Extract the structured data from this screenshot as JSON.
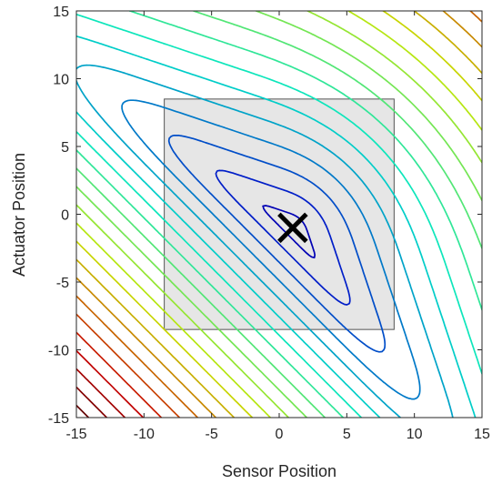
{
  "chart_data": {
    "type": "contour",
    "title": "",
    "xlabel": "Sensor Position",
    "ylabel": "Actuator Position",
    "xlim": [
      -15,
      15
    ],
    "ylim": [
      -15,
      15
    ],
    "xticks": [
      "-15",
      "-10",
      "-5",
      "0",
      "5",
      "10",
      "15"
    ],
    "yticks": [
      "-15",
      "-10",
      "-5",
      "0",
      "5",
      "10",
      "15"
    ],
    "xtick_values": [
      -15,
      -10,
      -5,
      0,
      5,
      10,
      15
    ],
    "ytick_values": [
      -15,
      -10,
      -5,
      0,
      5,
      10,
      15
    ],
    "grid": false,
    "colormap": "jet",
    "colors": {
      "low": "#0000aa",
      "mid": "#00ffcc",
      "high": "#aa0000",
      "region_fill": "#e6e6e6",
      "region_stroke": "#555555",
      "marker": "#000000",
      "axis": "#262626"
    },
    "minimum_marker": {
      "symbol": "×",
      "x": 1,
      "y": -1
    },
    "region": {
      "x": [
        -8.5,
        8.5
      ],
      "y": [
        -8.5,
        8.5
      ]
    },
    "contour_levels": 22
  }
}
